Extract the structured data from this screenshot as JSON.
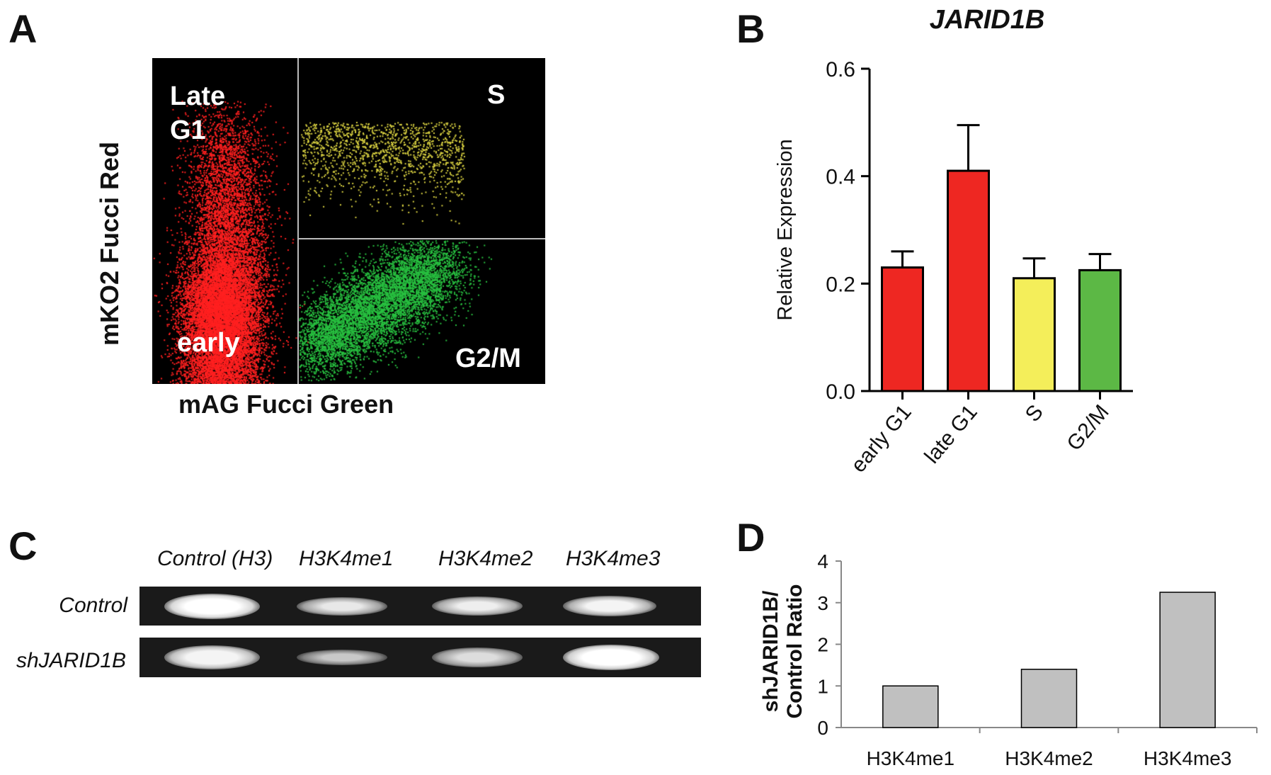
{
  "panels": {
    "a": {
      "letter": "A",
      "quadrant_labels": {
        "late_g1": "Late\nG1",
        "early": "early",
        "s": "S",
        "g2m": "G2/M"
      },
      "y_axis": "mKO2 Fucci Red",
      "x_axis": "mAG Fucci Green",
      "colors": {
        "red": "#ff2020",
        "yellow": "#d8d040",
        "green": "#28c040",
        "background": "#000000"
      }
    },
    "b": {
      "letter": "B"
    },
    "c": {
      "letter": "C",
      "lane_labels": [
        "Control (H3)",
        "H3K4me1",
        "H3K4me2",
        "H3K4me3"
      ],
      "row_labels": [
        "Control",
        "shJARID1B"
      ]
    },
    "d": {
      "letter": "D"
    }
  },
  "chart_data": [
    {
      "type": "bar",
      "title": "JARID1B",
      "ylabel": "Relative Expression",
      "xlabel": "",
      "categories": [
        "early G1",
        "late G1",
        "S",
        "G2/M"
      ],
      "values": [
        0.23,
        0.41,
        0.21,
        0.225
      ],
      "errors": [
        0.03,
        0.085,
        0.037,
        0.03
      ],
      "colors": [
        "#ee2722",
        "#ee2722",
        "#f4ee5a",
        "#5cb845"
      ],
      "ylim": [
        0,
        0.6
      ],
      "yticks": [
        "0.0",
        "0.2",
        "0.4",
        "0.6"
      ]
    },
    {
      "type": "bar",
      "title": "",
      "ylabel_lines": [
        "shJARID1B/",
        "Control Ratio"
      ],
      "xlabel": "",
      "categories": [
        "H3K4me1",
        "H3K4me2",
        "H3K4me3"
      ],
      "values": [
        1.0,
        1.4,
        3.25
      ],
      "colors": [
        "#c0c0c0",
        "#c0c0c0",
        "#c0c0c0"
      ],
      "ylim": [
        0,
        4
      ],
      "yticks": [
        "0",
        "1",
        "2",
        "3",
        "4"
      ]
    }
  ]
}
